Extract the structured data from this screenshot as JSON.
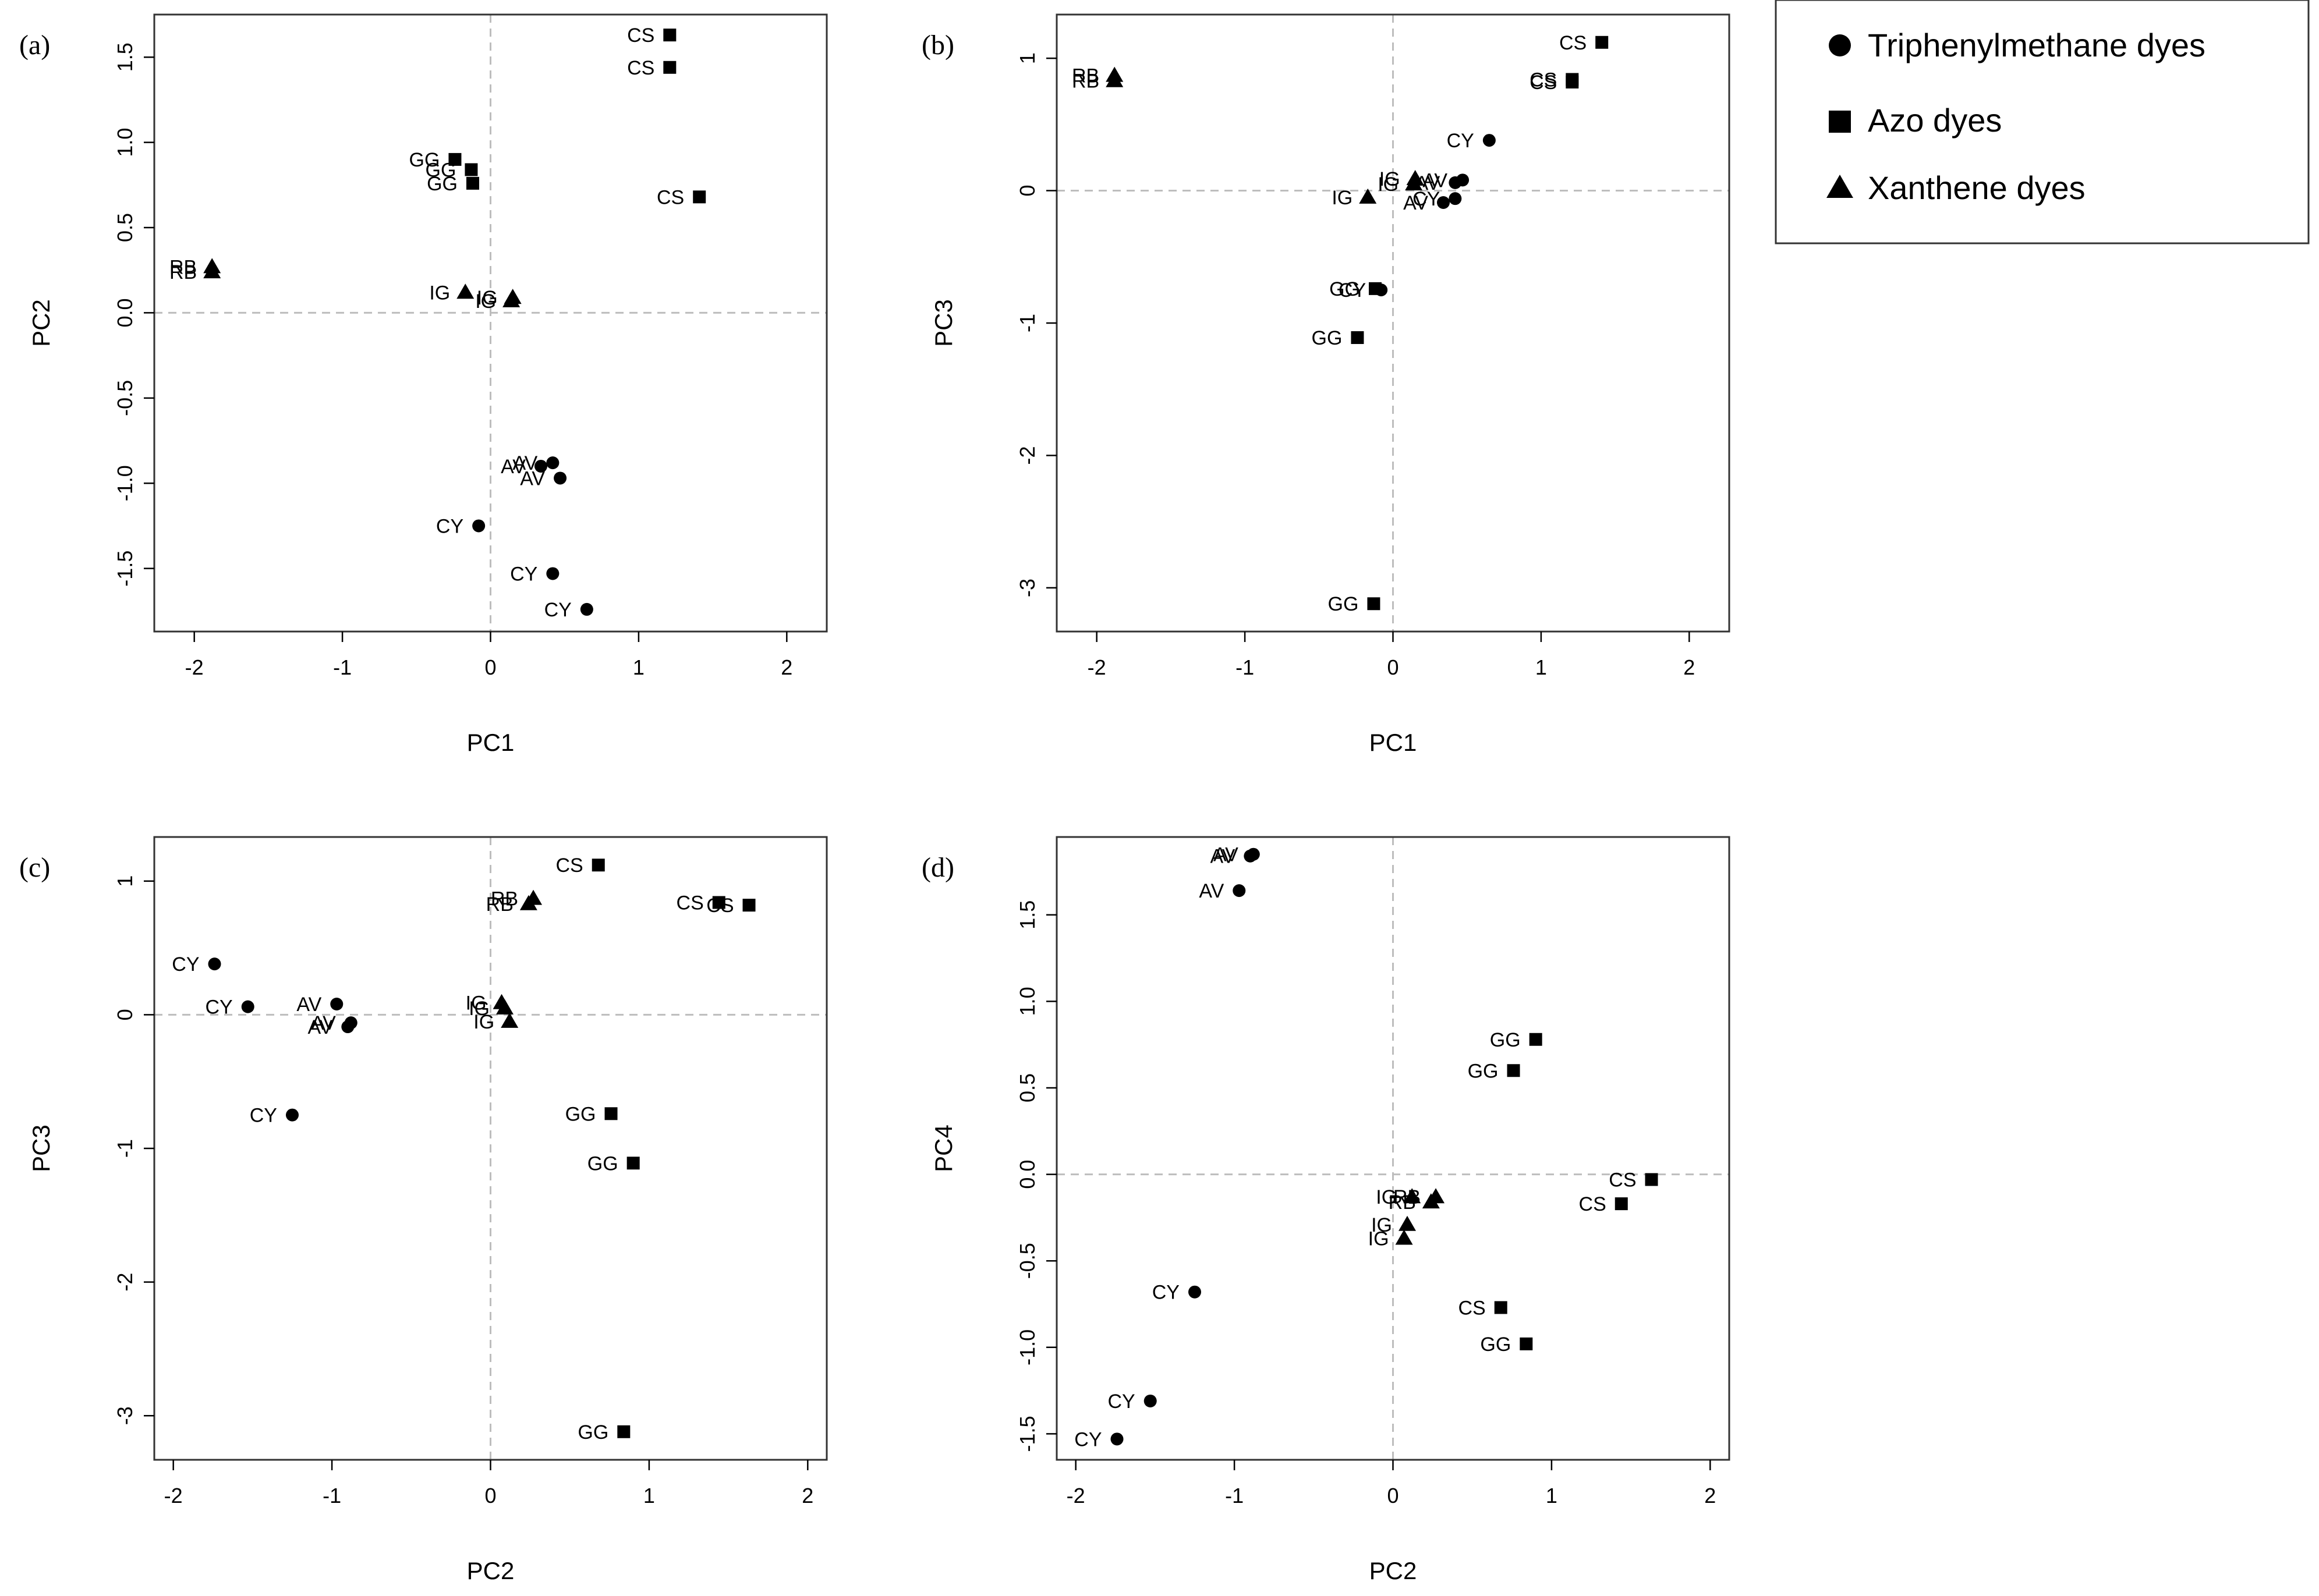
{
  "legend": {
    "items": [
      {
        "name": "Triphenylmethane dyes",
        "marker": "circle"
      },
      {
        "name": "Azo dyes",
        "marker": "square"
      },
      {
        "name": "Xanthene dyes",
        "marker": "triangle"
      }
    ]
  },
  "colors": {
    "ink": "#000000",
    "zero_line": "#bdbdbd",
    "frame": "#333333",
    "background": "#ffffff"
  },
  "chart_data": [
    {
      "type": "scatter",
      "panel": "(a)",
      "xlabel": "PC1",
      "ylabel": "PC2",
      "xlim": [
        -2.27,
        2.27
      ],
      "ylim": [
        -1.87,
        1.75
      ],
      "xticks": [
        -2,
        -1,
        0,
        1,
        2
      ],
      "xtick_labels": [
        "-2",
        "-1",
        "0",
        "1",
        "2"
      ],
      "yticks": [
        -1.5,
        -1.0,
        -0.5,
        0.0,
        0.5,
        1.0,
        1.5
      ],
      "ytick_labels": [
        "-1.5",
        "-1.0",
        "-0.5",
        "0.0",
        "0.5",
        "1.0",
        "1.5"
      ],
      "points": [
        {
          "label": "CS",
          "group": "square",
          "x": 1.21,
          "y": 1.63
        },
        {
          "label": "CS",
          "group": "square",
          "x": 1.21,
          "y": 1.44
        },
        {
          "label": "CS",
          "group": "square",
          "x": 1.41,
          "y": 0.68
        },
        {
          "label": "GG",
          "group": "square",
          "x": -0.24,
          "y": 0.9
        },
        {
          "label": "GG",
          "group": "square",
          "x": -0.13,
          "y": 0.84
        },
        {
          "label": "GG",
          "group": "square",
          "x": -0.12,
          "y": 0.76
        },
        {
          "label": "RB",
          "group": "triangle",
          "x": -1.88,
          "y": 0.27
        },
        {
          "label": "RB",
          "group": "triangle",
          "x": -1.88,
          "y": 0.24
        },
        {
          "label": "IG",
          "group": "triangle",
          "x": -0.17,
          "y": 0.12
        },
        {
          "label": "IG",
          "group": "triangle",
          "x": 0.15,
          "y": 0.09
        },
        {
          "label": "IG",
          "group": "triangle",
          "x": 0.14,
          "y": 0.07
        },
        {
          "label": "AV",
          "group": "circle",
          "x": 0.34,
          "y": -0.9
        },
        {
          "label": "AV",
          "group": "circle",
          "x": 0.42,
          "y": -0.88
        },
        {
          "label": "AV",
          "group": "circle",
          "x": 0.47,
          "y": -0.97
        },
        {
          "label": "CY",
          "group": "circle",
          "x": -0.08,
          "y": -1.25
        },
        {
          "label": "CY",
          "group": "circle",
          "x": 0.42,
          "y": -1.53
        },
        {
          "label": "CY",
          "group": "circle",
          "x": 0.65,
          "y": -1.74
        }
      ]
    },
    {
      "type": "scatter",
      "panel": "(b)",
      "xlabel": "PC1",
      "ylabel": "PC3",
      "xlim": [
        -2.27,
        2.27
      ],
      "ylim": [
        -3.33,
        1.33
      ],
      "xticks": [
        -2,
        -1,
        0,
        1,
        2
      ],
      "xtick_labels": [
        "-2",
        "-1",
        "0",
        "1",
        "2"
      ],
      "yticks": [
        -3,
        -2,
        -1,
        0,
        1
      ],
      "ytick_labels": [
        "-3",
        "-2",
        "-1",
        "0",
        "1"
      ],
      "points": [
        {
          "label": "CS",
          "group": "square",
          "x": 1.41,
          "y": 1.12
        },
        {
          "label": "CS",
          "group": "square",
          "x": 1.21,
          "y": 0.84
        },
        {
          "label": "CS",
          "group": "square",
          "x": 1.21,
          "y": 0.82
        },
        {
          "label": "RB",
          "group": "triangle",
          "x": -1.88,
          "y": 0.87
        },
        {
          "label": "RB",
          "group": "triangle",
          "x": -1.88,
          "y": 0.83
        },
        {
          "label": "CY",
          "group": "circle",
          "x": 0.65,
          "y": 0.38
        },
        {
          "label": "IG",
          "group": "triangle",
          "x": 0.15,
          "y": 0.09
        },
        {
          "label": "IG",
          "group": "triangle",
          "x": 0.14,
          "y": 0.05
        },
        {
          "label": "IG",
          "group": "triangle",
          "x": -0.17,
          "y": -0.05
        },
        {
          "label": "AV",
          "group": "circle",
          "x": 0.47,
          "y": 0.08
        },
        {
          "label": "AV",
          "group": "circle",
          "x": 0.42,
          "y": 0.06
        },
        {
          "label": "AV",
          "group": "circle",
          "x": 0.34,
          "y": -0.09
        },
        {
          "label": "CY",
          "group": "circle",
          "x": 0.42,
          "y": -0.06
        },
        {
          "label": "GG",
          "group": "square",
          "x": -0.12,
          "y": -0.74
        },
        {
          "label": "CY",
          "group": "circle",
          "x": -0.08,
          "y": -0.75
        },
        {
          "label": "GG",
          "group": "square",
          "x": -0.24,
          "y": -1.11
        },
        {
          "label": "GG",
          "group": "square",
          "x": -0.13,
          "y": -3.12
        }
      ]
    },
    {
      "type": "scatter",
      "panel": "(c)",
      "xlabel": "PC2",
      "ylabel": "PC3",
      "xlim": [
        -2.12,
        2.12
      ],
      "ylim": [
        -3.33,
        1.33
      ],
      "xticks": [
        -2,
        -1,
        0,
        1,
        2
      ],
      "xtick_labels": [
        "-2",
        "-1",
        "0",
        "1",
        "2"
      ],
      "yticks": [
        -3,
        -2,
        -1,
        0,
        1
      ],
      "ytick_labels": [
        "-3",
        "-2",
        "-1",
        "0",
        "1"
      ],
      "points": [
        {
          "label": "CS",
          "group": "square",
          "x": 0.68,
          "y": 1.12
        },
        {
          "label": "CS",
          "group": "square",
          "x": 1.44,
          "y": 0.84
        },
        {
          "label": "CS",
          "group": "square",
          "x": 1.63,
          "y": 0.82
        },
        {
          "label": "RB",
          "group": "triangle",
          "x": 0.27,
          "y": 0.87
        },
        {
          "label": "RB",
          "group": "triangle",
          "x": 0.24,
          "y": 0.83
        },
        {
          "label": "CY",
          "group": "circle",
          "x": -1.74,
          "y": 0.38
        },
        {
          "label": "CY",
          "group": "circle",
          "x": -1.53,
          "y": 0.06
        },
        {
          "label": "AV",
          "group": "circle",
          "x": -0.97,
          "y": 0.08
        },
        {
          "label": "AV",
          "group": "circle",
          "x": -0.88,
          "y": -0.06
        },
        {
          "label": "AV",
          "group": "circle",
          "x": -0.9,
          "y": -0.09
        },
        {
          "label": "IG",
          "group": "triangle",
          "x": 0.07,
          "y": 0.09
        },
        {
          "label": "IG",
          "group": "triangle",
          "x": 0.09,
          "y": 0.05
        },
        {
          "label": "IG",
          "group": "triangle",
          "x": 0.12,
          "y": -0.05
        },
        {
          "label": "CY",
          "group": "circle",
          "x": -1.25,
          "y": -0.75
        },
        {
          "label": "GG",
          "group": "square",
          "x": 0.76,
          "y": -0.74
        },
        {
          "label": "GG",
          "group": "square",
          "x": 0.9,
          "y": -1.11
        },
        {
          "label": "GG",
          "group": "square",
          "x": 0.84,
          "y": -3.12
        }
      ]
    },
    {
      "type": "scatter",
      "panel": "(d)",
      "xlabel": "PC2",
      "ylabel": "PC4",
      "xlim": [
        -2.12,
        2.12
      ],
      "ylim": [
        -1.65,
        1.95
      ],
      "xticks": [
        -2,
        -1,
        0,
        1,
        2
      ],
      "xtick_labels": [
        "-2",
        "-1",
        "0",
        "1",
        "2"
      ],
      "yticks": [
        -1.5,
        -1.0,
        -0.5,
        0.0,
        0.5,
        1.0,
        1.5
      ],
      "ytick_labels": [
        "-1.5",
        "-1.0",
        "-0.5",
        "0.0",
        "0.5",
        "1.0",
        "1.5"
      ],
      "points": [
        {
          "label": "AV",
          "group": "circle",
          "x": -0.88,
          "y": 1.85
        },
        {
          "label": "AV",
          "group": "circle",
          "x": -0.9,
          "y": 1.84
        },
        {
          "label": "AV",
          "group": "circle",
          "x": -0.97,
          "y": 1.64
        },
        {
          "label": "GG",
          "group": "square",
          "x": 0.9,
          "y": 0.78
        },
        {
          "label": "GG",
          "group": "square",
          "x": 0.76,
          "y": 0.6
        },
        {
          "label": "CS",
          "group": "square",
          "x": 1.63,
          "y": -0.03
        },
        {
          "label": "CS",
          "group": "square",
          "x": 1.44,
          "y": -0.17
        },
        {
          "label": "IG",
          "group": "triangle",
          "x": 0.12,
          "y": -0.13
        },
        {
          "label": "RB",
          "group": "triangle",
          "x": 0.27,
          "y": -0.13
        },
        {
          "label": "RB",
          "group": "triangle",
          "x": 0.24,
          "y": -0.16
        },
        {
          "label": "IG",
          "group": "triangle",
          "x": 0.09,
          "y": -0.29
        },
        {
          "label": "IG",
          "group": "triangle",
          "x": 0.07,
          "y": -0.37
        },
        {
          "label": "CY",
          "group": "circle",
          "x": -1.25,
          "y": -0.68
        },
        {
          "label": "CS",
          "group": "square",
          "x": 0.68,
          "y": -0.77
        },
        {
          "label": "GG",
          "group": "square",
          "x": 0.84,
          "y": -0.98
        },
        {
          "label": "CY",
          "group": "circle",
          "x": -1.53,
          "y": -1.31
        },
        {
          "label": "CY",
          "group": "circle",
          "x": -1.74,
          "y": -1.53
        }
      ]
    }
  ]
}
